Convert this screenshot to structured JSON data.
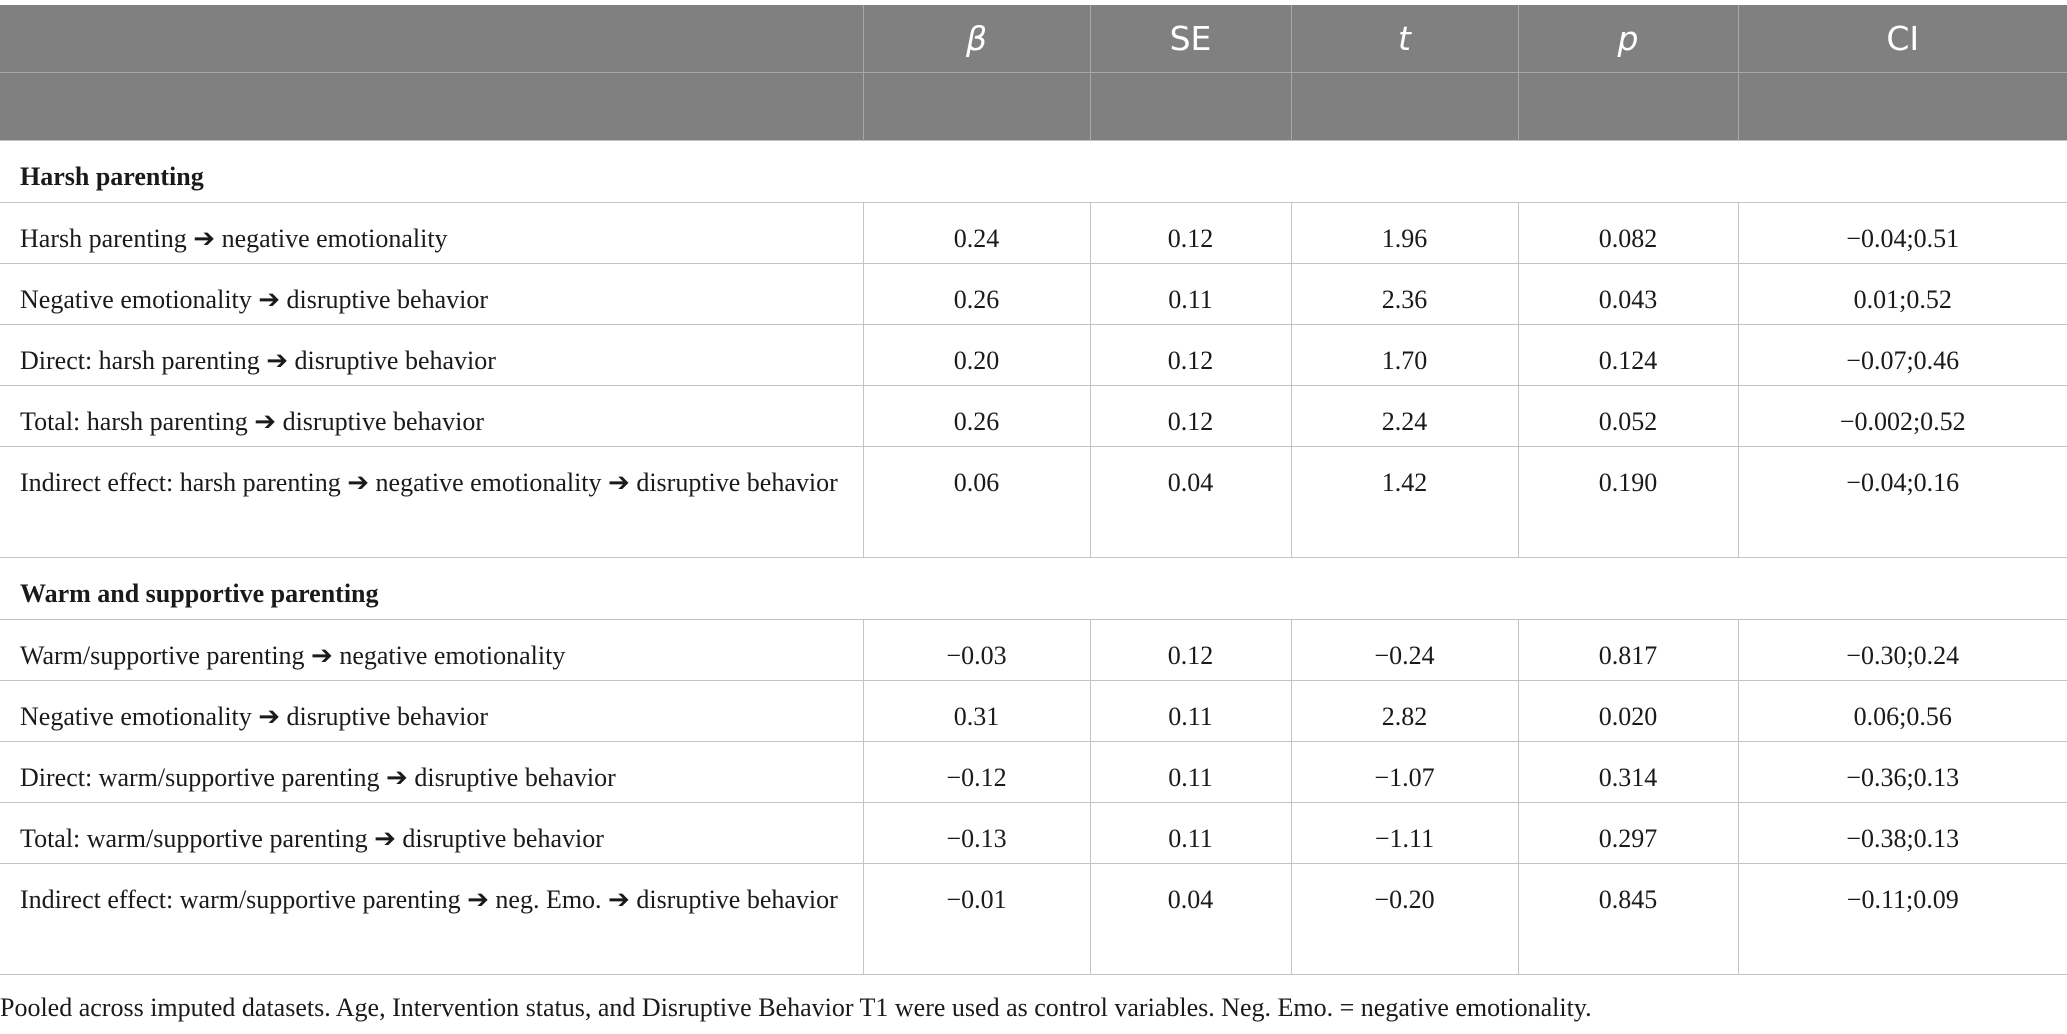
{
  "header": {
    "col1": "",
    "beta": "β",
    "se": "SE",
    "t": "t",
    "p": "p",
    "ci": "CI"
  },
  "sections": [
    {
      "title": "Harsh parenting",
      "rows": [
        {
          "label": "Harsh parenting ➔ negative emotionality",
          "beta": "0.24",
          "se": "0.12",
          "t": "1.96",
          "p": "0.082",
          "ci": "−0.04;0.51"
        },
        {
          "label": "Negative emotionality ➔ disruptive behavior",
          "beta": "0.26",
          "se": "0.11",
          "t": "2.36",
          "p": "0.043",
          "ci": "0.01;0.52"
        },
        {
          "label": "Direct: harsh parenting ➔ disruptive behavior",
          "beta": "0.20",
          "se": "0.12",
          "t": "1.70",
          "p": "0.124",
          "ci": "−0.07;0.46"
        },
        {
          "label": "Total: harsh parenting ➔ disruptive behavior",
          "beta": "0.26",
          "se": "0.12",
          "t": "2.24",
          "p": "0.052",
          "ci": "−0.002;0.52"
        },
        {
          "label": "Indirect effect: harsh parenting ➔ negative emotionality ➔ disruptive behavior",
          "beta": "0.06",
          "se": "0.04",
          "t": "1.42",
          "p": "0.190",
          "ci": "−0.04;0.16"
        }
      ]
    },
    {
      "title": "Warm and supportive parenting",
      "rows": [
        {
          "label": "Warm/supportive parenting ➔ negative emotionality",
          "beta": "−0.03",
          "se": "0.12",
          "t": "−0.24",
          "p": "0.817",
          "ci": "−0.30;0.24"
        },
        {
          "label": "Negative emotionality ➔ disruptive behavior",
          "beta": "0.31",
          "se": "0.11",
          "t": "2.82",
          "p": "0.020",
          "ci": "0.06;0.56"
        },
        {
          "label": "Direct: warm/supportive parenting ➔ disruptive behavior",
          "beta": "−0.12",
          "se": "0.11",
          "t": "−1.07",
          "p": "0.314",
          "ci": "−0.36;0.13"
        },
        {
          "label": "Total: warm/supportive parenting ➔ disruptive behavior",
          "beta": "−0.13",
          "se": "0.11",
          "t": "−1.11",
          "p": "0.297",
          "ci": "−0.38;0.13"
        },
        {
          "label": "Indirect effect: warm/supportive parenting ➔ neg. Emo. ➔ disruptive behavior",
          "beta": "−0.01",
          "se": "0.04",
          "t": "−0.20",
          "p": "0.845",
          "ci": "−0.11;0.09"
        }
      ]
    }
  ],
  "footnote": "Pooled across imputed datasets. Age, Intervention status, and Disruptive Behavior T1 were used as control variables. Neg. Emo. = negative emotionality."
}
